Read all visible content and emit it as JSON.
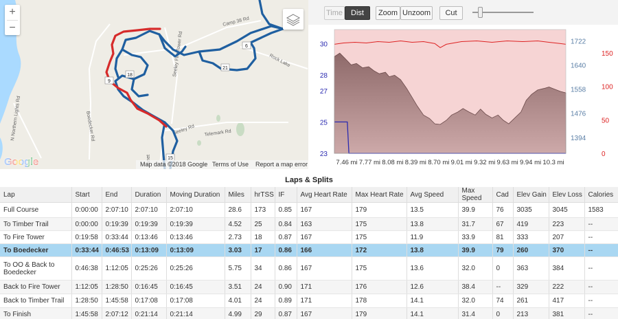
{
  "map": {
    "zoom_in": "+",
    "zoom_out": "−",
    "google_logo": "Google",
    "footer": {
      "map_data": "Map data ©2018 Google",
      "terms": "Terms of Use",
      "report": "Report a map error"
    },
    "road_labels": [
      "Camp 38 Rd",
      "Rock Lake",
      "Seeley Fire Tower Rd",
      "Boedecker Rd",
      "N Northern Lights Rd",
      "Telemark Rd",
      "Seeley Rd",
      "Janet"
    ],
    "markers": [
      "6",
      "21",
      "18",
      "9",
      "15"
    ],
    "colors": {
      "route_blue": "#1f5fa0",
      "route_red": "#d62b2b"
    }
  },
  "toolbar": {
    "time_label": "Time",
    "dist_label": "Dist",
    "zoom_label": "Zoom",
    "unzoom_label": "Unzoom",
    "cut_label": "Cut"
  },
  "chart_data": {
    "type": "line",
    "x_ticks": [
      "7.46 mi",
      "7.77 mi",
      "8.08 mi",
      "8.39 mi",
      "8.70 mi",
      "9.01 mi",
      "9.32 mi",
      "9.63 mi",
      "9.94 mi",
      "10.3 mi"
    ],
    "left_axis": {
      "ticks": [
        23,
        25,
        27,
        28,
        30
      ],
      "color": "#2a2ab0"
    },
    "mid_axis": {
      "ticks": [
        1394,
        1476,
        1558,
        1640,
        1722
      ],
      "color": "#5b7fa6"
    },
    "right_axis": {
      "ticks": [
        0,
        50,
        100,
        150
      ],
      "color": "#d22"
    },
    "x_range": [
      7.33,
      10.37
    ],
    "series": [
      {
        "axis": "right",
        "color": "#d22",
        "x": [
          7.33,
          7.45,
          7.6,
          7.75,
          7.9,
          8.05,
          8.2,
          8.35,
          8.5,
          8.65,
          8.72,
          8.8,
          9.0,
          9.2,
          9.4,
          9.6,
          9.8,
          10.0,
          10.15,
          10.3,
          10.37
        ],
        "values": [
          163,
          165,
          166,
          165,
          167,
          166,
          168,
          166,
          167,
          164,
          158,
          163,
          167,
          168,
          166,
          168,
          167,
          168,
          166,
          164,
          163
        ]
      },
      {
        "axis": "mid",
        "color": "#6b4a4a",
        "x": [
          7.33,
          7.4,
          7.47,
          7.55,
          7.62,
          7.7,
          7.78,
          7.85,
          7.92,
          8.0,
          8.05,
          8.12,
          8.2,
          8.28,
          8.35,
          8.42,
          8.5,
          8.58,
          8.65,
          8.72,
          8.8,
          8.87,
          8.95,
          9.02,
          9.1,
          9.18,
          9.25,
          9.32,
          9.4,
          9.48,
          9.55,
          9.62,
          9.7,
          9.78,
          9.85,
          9.92,
          10.0,
          10.08,
          10.15,
          10.22,
          10.3,
          10.37
        ],
        "values": [
          1668,
          1680,
          1662,
          1640,
          1645,
          1630,
          1634,
          1620,
          1610,
          1615,
          1600,
          1605,
          1590,
          1560,
          1530,
          1500,
          1470,
          1458,
          1440,
          1438,
          1452,
          1470,
          1480,
          1492,
          1480,
          1470,
          1490,
          1472,
          1460,
          1470,
          1452,
          1440,
          1460,
          1480,
          1520,
          1540,
          1555,
          1560,
          1565,
          1558,
          1550,
          1545
        ]
      },
      {
        "axis": "left",
        "color": "#2a2ab0",
        "x": [
          7.33,
          7.5,
          7.52,
          10.37
        ],
        "values": [
          25,
          25,
          23,
          23
        ]
      }
    ]
  },
  "laps": {
    "title": "Laps & Splits",
    "columns": [
      "Lap",
      "Start",
      "End",
      "Duration",
      "Moving Duration",
      "Miles",
      "hrTSS",
      "IF",
      "Avg Heart Rate",
      "Max Heart Rate",
      "Avg Speed",
      "Max Speed",
      "Cad",
      "Elev Gain",
      "Elev Loss",
      "Calories"
    ],
    "rows": [
      [
        "Full Course",
        "0:00:00",
        "2:07:10",
        "2:07:10",
        "2:07:10",
        "28.6",
        "173",
        "0.85",
        "167",
        "179",
        "13.5",
        "39.9",
        "76",
        "3035",
        "3045",
        "1583"
      ],
      [
        "To Timber Trail",
        "0:00:00",
        "0:19:39",
        "0:19:39",
        "0:19:39",
        "4.52",
        "25",
        "0.84",
        "163",
        "175",
        "13.8",
        "31.7",
        "67",
        "419",
        "223",
        "--"
      ],
      [
        "To Fire Tower",
        "0:19:58",
        "0:33:44",
        "0:13:46",
        "0:13:46",
        "2.73",
        "18",
        "0.87",
        "167",
        "175",
        "11.9",
        "33.9",
        "81",
        "333",
        "207",
        "--"
      ],
      [
        "To Boedecker",
        "0:33:44",
        "0:46:53",
        "0:13:09",
        "0:13:09",
        "3.03",
        "17",
        "0.86",
        "166",
        "172",
        "13.8",
        "39.9",
        "79",
        "260",
        "370",
        "--"
      ],
      [
        "To OO & Back to Boedecker",
        "0:46:38",
        "1:12:05",
        "0:25:26",
        "0:25:26",
        "5.75",
        "34",
        "0.86",
        "167",
        "175",
        "13.6",
        "32.0",
        "0",
        "363",
        "384",
        "--"
      ],
      [
        "Back to Fire Tower",
        "1:12:05",
        "1:28:50",
        "0:16:45",
        "0:16:45",
        "3.51",
        "24",
        "0.90",
        "171",
        "176",
        "12.6",
        "38.4",
        "--",
        "329",
        "222",
        "--"
      ],
      [
        "Back to Timber Trail",
        "1:28:50",
        "1:45:58",
        "0:17:08",
        "0:17:08",
        "4.01",
        "24",
        "0.89",
        "171",
        "178",
        "14.1",
        "32.0",
        "74",
        "261",
        "417",
        "--"
      ],
      [
        "To Finish",
        "1:45:58",
        "2:07:12",
        "0:21:14",
        "0:21:14",
        "4.99",
        "29",
        "0.87",
        "167",
        "179",
        "14.1",
        "31.4",
        "0",
        "213",
        "381",
        "--"
      ]
    ],
    "selected_row": 3
  }
}
